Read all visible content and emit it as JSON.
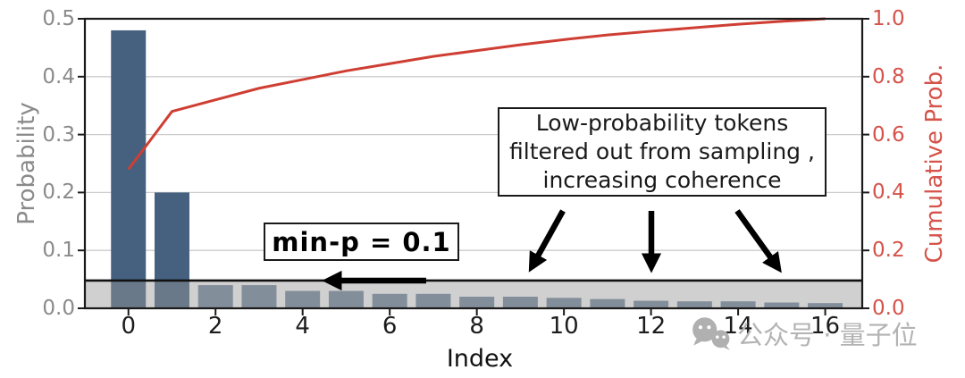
{
  "figure": {
    "xlabel": "Index",
    "left_axis": {
      "label": "Probability",
      "ticks": [
        "0.5",
        "0.4",
        "0.3",
        "0.2",
        "0.1",
        "0.0"
      ],
      "color": "#8a8a8a"
    },
    "right_axis": {
      "label": "Cumulative Prob.",
      "ticks": [
        "1.0",
        "0.8",
        "0.6",
        "0.4",
        "0.2",
        "0.0"
      ],
      "color": "#d6524a"
    },
    "x_axis": {
      "ticks": [
        "0",
        "2",
        "4",
        "6",
        "8",
        "10",
        "12",
        "14",
        "16"
      ],
      "color": "#1c1c1c"
    }
  },
  "chart_data": {
    "type": "bar",
    "x": [
      0,
      1,
      2,
      3,
      4,
      5,
      6,
      7,
      8,
      9,
      10,
      11,
      12,
      13,
      14,
      15,
      16
    ],
    "series": [
      {
        "name": "Probability",
        "type": "bar",
        "values": [
          0.48,
          0.2,
          0.04,
          0.04,
          0.03,
          0.03,
          0.025,
          0.025,
          0.02,
          0.02,
          0.018,
          0.016,
          0.013,
          0.012,
          0.012,
          0.01,
          0.009
        ],
        "color_kept": "#45617f",
        "color_filtered": "#72879d"
      },
      {
        "name": "Cumulative Prob.",
        "type": "line",
        "values": [
          0.48,
          0.68,
          0.72,
          0.76,
          0.79,
          0.82,
          0.845,
          0.87,
          0.89,
          0.91,
          0.928,
          0.944,
          0.957,
          0.969,
          0.981,
          0.991,
          1.0
        ],
        "color": "#cf3e33"
      }
    ],
    "title": "",
    "xlabel": "Index",
    "ylabel": "Probability",
    "ylabel_right": "Cumulative Prob.",
    "xlim": [
      -1,
      16.85
    ],
    "ylim_left": [
      0,
      0.5
    ],
    "ylim_right": [
      0,
      1.0
    ],
    "grid": true,
    "gridline_values": [
      0.1,
      0.2,
      0.3,
      0.4
    ],
    "threshold": {
      "value": 0.048,
      "shaded_below": true,
      "band_color": "rgba(150,150,150,0.45)",
      "line_color": "#111111"
    }
  },
  "annotations": {
    "filter_note_lines": [
      "Low-probability tokens",
      "filtered out from sampling ,",
      "increasing coherence"
    ],
    "minp_label": "min-p = 0.1"
  },
  "watermark": {
    "icon": "wechat-icon",
    "text": "公众号 · 量子位"
  }
}
